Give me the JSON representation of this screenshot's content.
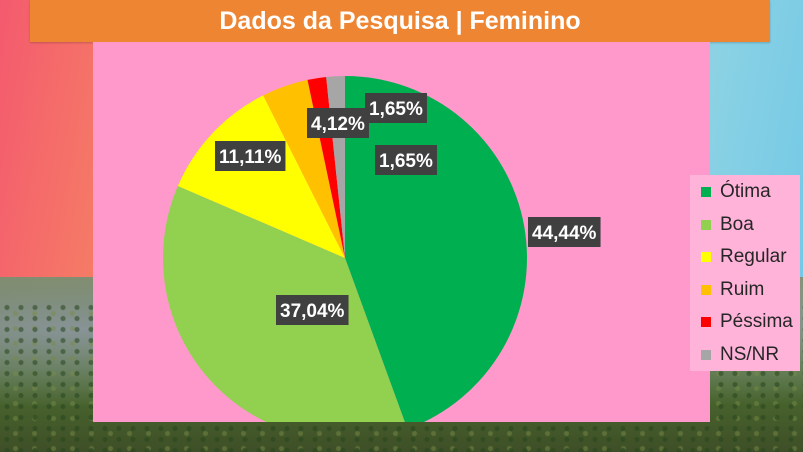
{
  "title": "Dados da Pesquisa | Feminino",
  "chart_data": {
    "type": "pie",
    "title": "Dados da Pesquisa | Feminino",
    "legend_position": "right",
    "slices": [
      {
        "name": "Ótima",
        "value": 44.44,
        "label": "44,44%",
        "color": "#00b050"
      },
      {
        "name": "Boa",
        "value": 37.04,
        "label": "37,04%",
        "color": "#92d050"
      },
      {
        "name": "Regular",
        "value": 11.11,
        "label": "11,11%",
        "color": "#ffff00"
      },
      {
        "name": "Ruim",
        "value": 4.12,
        "label": "4,12%",
        "color": "#ffc000"
      },
      {
        "name": "Péssima",
        "value": 1.65,
        "label": "1,65%",
        "color": "#ff0000"
      },
      {
        "name": "NS/NR",
        "value": 1.65,
        "label": "1,65%",
        "color": "#a6a6a6"
      }
    ]
  }
}
